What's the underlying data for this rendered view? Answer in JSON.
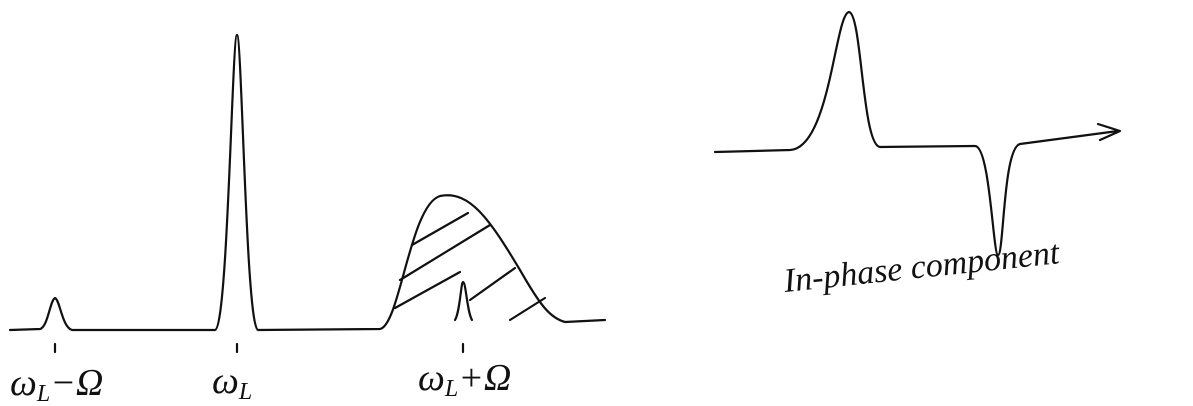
{
  "labels": [
    {
      "base": "ω",
      "sub": "L",
      "rest": "−Ω"
    },
    {
      "base": "ω",
      "sub": "L",
      "rest": ""
    },
    {
      "base": "ω",
      "sub": "L",
      "rest": "+Ω"
    }
  ],
  "caption": "In-phase component"
}
